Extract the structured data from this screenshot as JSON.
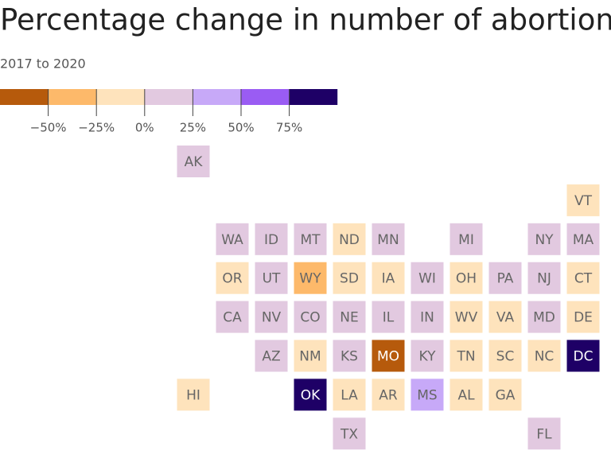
{
  "header": {
    "title": "Percentage change in number of abortions",
    "subtitle": "2017 to 2020"
  },
  "legend": {
    "colors": [
      "#b65a0c",
      "#fdb96a",
      "#fee3bc",
      "#e2c9e0",
      "#c7a9f8",
      "#9a5cf3",
      "#1e0066"
    ],
    "labels": [
      "−50%",
      "−25%",
      "0%",
      "25%",
      "50%",
      "75%"
    ]
  },
  "tiles": [
    {
      "label": "AK",
      "color": "#e2c9e0"
    },
    {
      "label": "VT",
      "color": "#fee3bc"
    },
    {
      "label": "WA",
      "color": "#e2c9e0"
    },
    {
      "label": "ID",
      "color": "#e2c9e0"
    },
    {
      "label": "MT",
      "color": "#e2c9e0"
    },
    {
      "label": "ND",
      "color": "#fee3bc"
    },
    {
      "label": "MN",
      "color": "#e2c9e0"
    },
    {
      "label": "MI",
      "color": "#e2c9e0"
    },
    {
      "label": "NY",
      "color": "#e2c9e0"
    },
    {
      "label": "MA",
      "color": "#e2c9e0"
    },
    {
      "label": "OR",
      "color": "#fee3bc"
    },
    {
      "label": "UT",
      "color": "#e2c9e0"
    },
    {
      "label": "WY",
      "color": "#fdb96a"
    },
    {
      "label": "SD",
      "color": "#fee3bc"
    },
    {
      "label": "IA",
      "color": "#fee3bc"
    },
    {
      "label": "WI",
      "color": "#e2c9e0"
    },
    {
      "label": "OH",
      "color": "#fee3bc"
    },
    {
      "label": "PA",
      "color": "#e2c9e0"
    },
    {
      "label": "NJ",
      "color": "#e2c9e0"
    },
    {
      "label": "CT",
      "color": "#fee3bc"
    },
    {
      "label": "CA",
      "color": "#e2c9e0"
    },
    {
      "label": "NV",
      "color": "#e2c9e0"
    },
    {
      "label": "CO",
      "color": "#e2c9e0"
    },
    {
      "label": "NE",
      "color": "#e2c9e0"
    },
    {
      "label": "IL",
      "color": "#e2c9e0"
    },
    {
      "label": "IN",
      "color": "#e2c9e0"
    },
    {
      "label": "WV",
      "color": "#fee3bc"
    },
    {
      "label": "VA",
      "color": "#fee3bc"
    },
    {
      "label": "MD",
      "color": "#e2c9e0"
    },
    {
      "label": "DE",
      "color": "#fee3bc"
    },
    {
      "label": "AZ",
      "color": "#e2c9e0"
    },
    {
      "label": "NM",
      "color": "#fee3bc"
    },
    {
      "label": "KS",
      "color": "#e2c9e0"
    },
    {
      "label": "MO",
      "color": "#b65a0c"
    },
    {
      "label": "KY",
      "color": "#e2c9e0"
    },
    {
      "label": "TN",
      "color": "#fee3bc"
    },
    {
      "label": "SC",
      "color": "#fee3bc"
    },
    {
      "label": "NC",
      "color": "#fee3bc"
    },
    {
      "label": "DC",
      "color": "#1e0066"
    },
    {
      "label": "HI",
      "color": "#fee3bc"
    },
    {
      "label": "OK",
      "color": "#1e0066"
    },
    {
      "label": "LA",
      "color": "#fee3bc"
    },
    {
      "label": "AR",
      "color": "#fee3bc"
    },
    {
      "label": "MS",
      "color": "#c7a9f8"
    },
    {
      "label": "AL",
      "color": "#fee3bc"
    },
    {
      "label": "GA",
      "color": "#fee3bc"
    },
    {
      "label": "TX",
      "color": "#e2c9e0"
    },
    {
      "label": "FL",
      "color": "#e2c9e0"
    }
  ]
}
